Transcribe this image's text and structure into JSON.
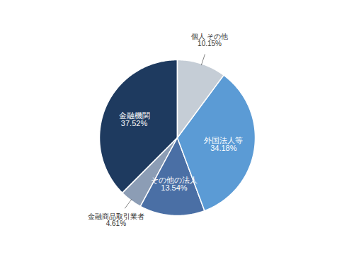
{
  "chart_data": {
    "type": "pie",
    "categories": [
      "金融機関",
      "金融商品取引業者",
      "その他の法人",
      "外国法人等",
      "個人 その他"
    ],
    "values": [
      37.52,
      4.61,
      13.54,
      34.18,
      10.15
    ],
    "value_labels": [
      "37.52%",
      "4.61%",
      "13.54%",
      "34.18%",
      "10.15%"
    ],
    "colors": [
      "#1e3a5f",
      "#8c9db5",
      "#4a6fa5",
      "#5b9bd5",
      "#c5cdd6"
    ],
    "data_labels": true
  }
}
